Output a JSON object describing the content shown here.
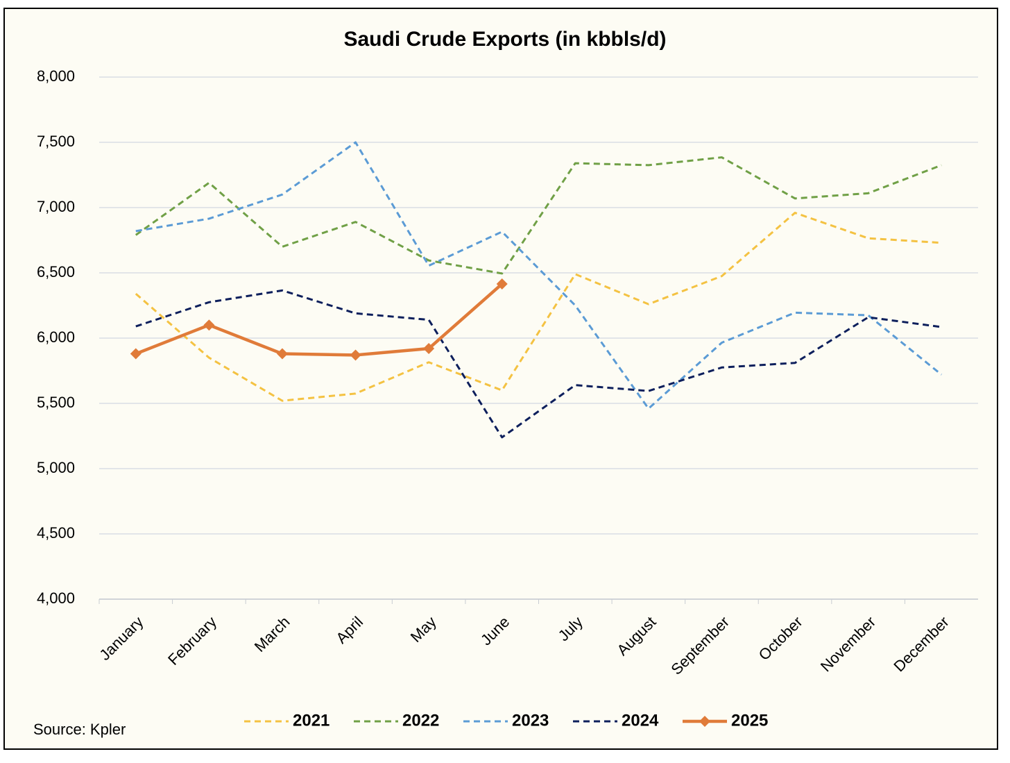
{
  "chart_data": {
    "type": "line",
    "title": "Saudi Crude Exports (in kbbls/d)",
    "source": "Source: Kpler",
    "categories": [
      "January",
      "February",
      "March",
      "April",
      "May",
      "June",
      "July",
      "August",
      "September",
      "October",
      "November",
      "December"
    ],
    "series": [
      {
        "name": "2021",
        "color": "#f4c242",
        "dashed": true,
        "values": [
          6340,
          5850,
          5520,
          5575,
          5815,
          5600,
          6490,
          6260,
          6475,
          6960,
          6765,
          6730
        ]
      },
      {
        "name": "2022",
        "color": "#70a046",
        "dashed": true,
        "values": [
          6790,
          7190,
          6700,
          6890,
          6595,
          6495,
          7340,
          7325,
          7385,
          7070,
          7110,
          7325
        ]
      },
      {
        "name": "2023",
        "color": "#5b9bd5",
        "dashed": true,
        "values": [
          6820,
          6915,
          7100,
          7500,
          6555,
          6815,
          6250,
          5460,
          5965,
          6195,
          6175,
          5720
        ]
      },
      {
        "name": "2024",
        "color": "#0d1f5c",
        "dashed": true,
        "values": [
          6090,
          6275,
          6365,
          6190,
          6140,
          5240,
          5640,
          5595,
          5775,
          5810,
          6160,
          6085
        ]
      },
      {
        "name": "2025",
        "color": "#e07b39",
        "dashed": false,
        "markers": "diamond",
        "values": [
          5880,
          6100,
          5880,
          5870,
          5920,
          6415,
          null,
          null,
          null,
          null,
          null,
          null
        ]
      }
    ],
    "ylim": [
      4000,
      8000
    ],
    "yticks": [
      {
        "value": 4000,
        "label": "4,000"
      },
      {
        "value": 4500,
        "label": "4,500"
      },
      {
        "value": 5000,
        "label": "5,000"
      },
      {
        "value": 5500,
        "label": "5,500"
      },
      {
        "value": 6000,
        "label": "6,000"
      },
      {
        "value": 6500,
        "label": "6,500"
      },
      {
        "value": 7000,
        "label": "7,000"
      },
      {
        "value": 7500,
        "label": "7,500"
      },
      {
        "value": 8000,
        "label": "8,000"
      }
    ],
    "grid": true,
    "legend": "bottom"
  }
}
